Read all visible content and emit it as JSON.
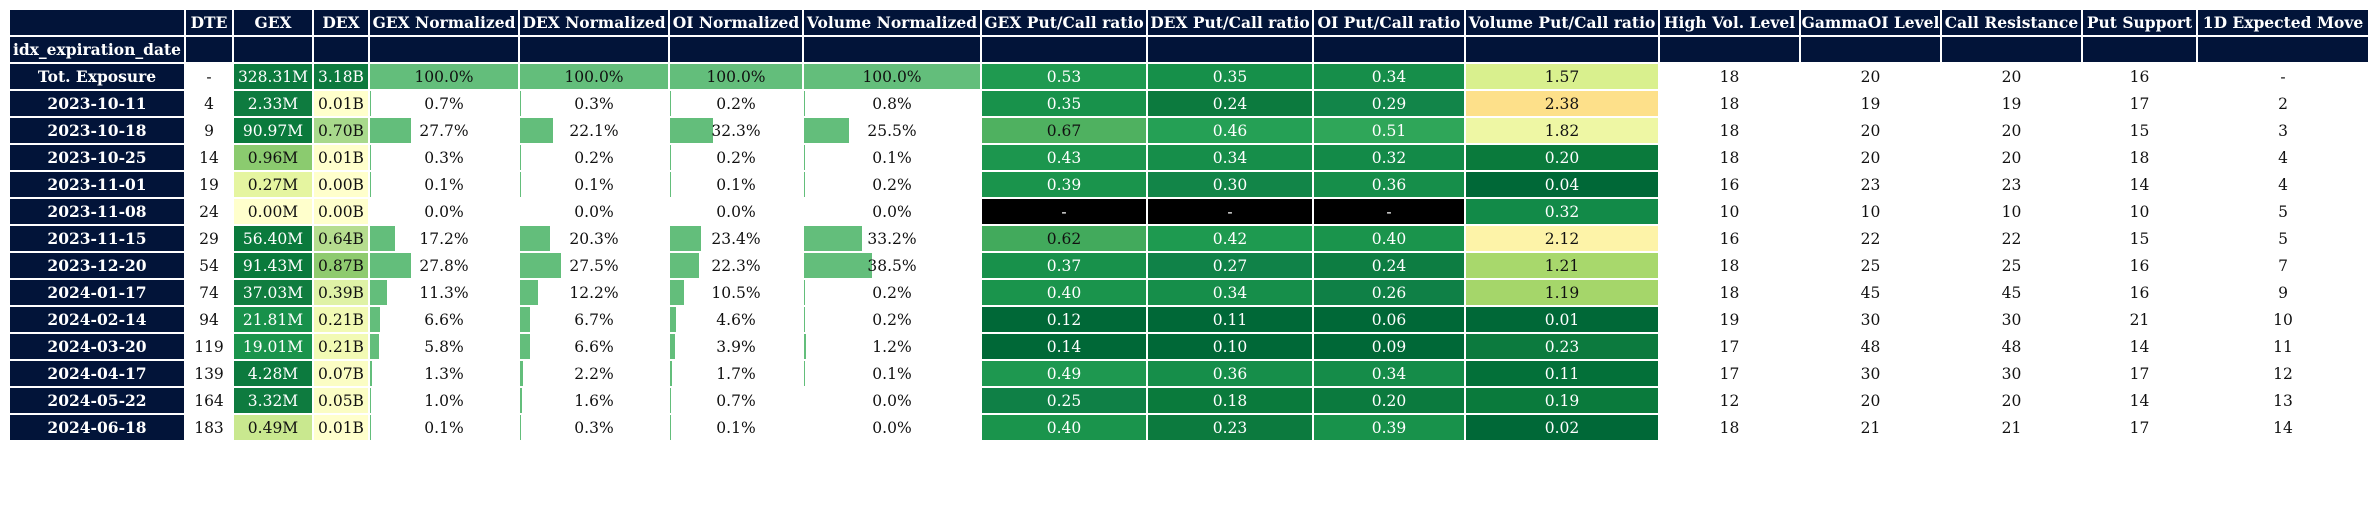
{
  "columns": [
    "DTE",
    "GEX",
    "DEX",
    "GEX Normalized",
    "DEX Normalized",
    "OI Normalized",
    "Volume Normalized",
    "GEX Put/Call ratio",
    "DEX Put/Call ratio",
    "OI Put/Call ratio",
    "Volume Put/Call ratio",
    "High Vol. Level",
    "GammaOI Level",
    "Call Resistance",
    "Put Support",
    "1D Expected Move"
  ],
  "index_name": "idx_expiration_date",
  "rows": [
    {
      "label": "Tot. Exposure",
      "dte": "-",
      "gex": "328.31M",
      "dex": "3.18B",
      "gex_norm": "100.0%",
      "dex_norm": "100.0%",
      "oi_norm": "100.0%",
      "vol_norm": "100.0%",
      "gex_pc": "0.53",
      "dex_pc": "0.35",
      "oi_pc": "0.34",
      "vol_pc": "1.57",
      "hvl": "18",
      "goi": "20",
      "cr": "20",
      "ps": "16",
      "em": "-",
      "gex_color": "#0c7a3e",
      "dex_color": "#0d7a3e",
      "gex_pc_color": "#1f9a50",
      "dex_pc_color": "#16904a",
      "oi_pc_color": "#168e4a",
      "vol_pc_color": "#d9f08e",
      "gex_norm_frac": 1.0,
      "dex_norm_frac": 1.0,
      "oi_norm_frac": 1.0,
      "vol_norm_frac": 1.0
    },
    {
      "label": "2023-10-11",
      "dte": "4",
      "gex": "2.33M",
      "dex": "0.01B",
      "gex_norm": "0.7%",
      "dex_norm": "0.3%",
      "oi_norm": "0.2%",
      "vol_norm": "0.8%",
      "gex_pc": "0.35",
      "dex_pc": "0.24",
      "oi_pc": "0.29",
      "vol_pc": "2.38",
      "hvl": "18",
      "goi": "19",
      "cr": "19",
      "ps": "17",
      "em": "2",
      "gex_color": "#0e7b3f",
      "dex_color": "#ffffcc",
      "gex_pc_color": "#18924b",
      "dex_pc_color": "#0c7a3e",
      "oi_pc_color": "#128549",
      "vol_pc_color": "#fde08a",
      "gex_norm_frac": 0.007,
      "dex_norm_frac": 0.003,
      "oi_norm_frac": 0.002,
      "vol_norm_frac": 0.008
    },
    {
      "label": "2023-10-18",
      "dte": "9",
      "gex": "90.97M",
      "dex": "0.70B",
      "gex_norm": "27.7%",
      "dex_norm": "22.1%",
      "oi_norm": "32.3%",
      "vol_norm": "25.5%",
      "gex_pc": "0.67",
      "dex_pc": "0.46",
      "oi_pc": "0.51",
      "vol_pc": "1.82",
      "hvl": "18",
      "goi": "20",
      "cr": "20",
      "ps": "15",
      "em": "3",
      "gex_color": "#0a7a3c",
      "dex_color": "#a8d98c",
      "gex_pc_color": "#4fb160",
      "dex_pc_color": "#25a055",
      "oi_pc_color": "#2fa659",
      "vol_pc_color": "#eef7a4",
      "gex_norm_frac": 0.277,
      "dex_norm_frac": 0.221,
      "oi_norm_frac": 0.323,
      "vol_norm_frac": 0.255
    },
    {
      "label": "2023-10-25",
      "dte": "14",
      "gex": "0.96M",
      "dex": "0.01B",
      "gex_norm": "0.3%",
      "dex_norm": "0.2%",
      "oi_norm": "0.2%",
      "vol_norm": "0.1%",
      "gex_pc": "0.43",
      "dex_pc": "0.34",
      "oi_pc": "0.32",
      "vol_pc": "0.20",
      "hvl": "18",
      "goi": "20",
      "cr": "20",
      "ps": "18",
      "em": "4",
      "gex_color": "#8bcb6f",
      "dex_color": "#ffffcc",
      "gex_pc_color": "#1c964e",
      "dex_pc_color": "#168e4a",
      "oi_pc_color": "#138a48",
      "vol_pc_color": "#0a7a3c",
      "gex_norm_frac": 0.003,
      "dex_norm_frac": 0.002,
      "oi_norm_frac": 0.002,
      "vol_norm_frac": 0.001
    },
    {
      "label": "2023-11-01",
      "dte": "19",
      "gex": "0.27M",
      "dex": "0.00B",
      "gex_norm": "0.1%",
      "dex_norm": "0.1%",
      "oi_norm": "0.1%",
      "vol_norm": "0.2%",
      "gex_pc": "0.39",
      "dex_pc": "0.30",
      "oi_pc": "0.36",
      "vol_pc": "0.04",
      "hvl": "16",
      "goi": "23",
      "cr": "23",
      "ps": "14",
      "em": "4",
      "gex_color": "#e5f5a0",
      "dex_color": "#ffffcc",
      "gex_pc_color": "#1a944c",
      "dex_pc_color": "#128548",
      "oi_pc_color": "#168e4a",
      "vol_pc_color": "#006837",
      "gex_norm_frac": 0.001,
      "dex_norm_frac": 0.001,
      "oi_norm_frac": 0.001,
      "vol_norm_frac": 0.002
    },
    {
      "label": "2023-11-08",
      "dte": "24",
      "gex": "0.00M",
      "dex": "0.00B",
      "gex_norm": "0.0%",
      "dex_norm": "0.0%",
      "oi_norm": "0.0%",
      "vol_norm": "0.0%",
      "gex_pc": "-",
      "dex_pc": "-",
      "oi_pc": "-",
      "vol_pc": "0.32",
      "hvl": "10",
      "goi": "10",
      "cr": "10",
      "ps": "10",
      "em": "5",
      "gex_color": "#ffffcc",
      "dex_color": "#ffffcc",
      "gex_pc_color": "#000000",
      "dex_pc_color": "#000000",
      "oi_pc_color": "#000000",
      "vol_pc_color": "#128a48",
      "gex_norm_frac": 0.0,
      "dex_norm_frac": 0.0,
      "oi_norm_frac": 0.0,
      "vol_norm_frac": 0.0
    },
    {
      "label": "2023-11-15",
      "dte": "29",
      "gex": "56.40M",
      "dex": "0.64B",
      "gex_norm": "17.2%",
      "dex_norm": "20.3%",
      "oi_norm": "23.4%",
      "vol_norm": "33.2%",
      "gex_pc": "0.62",
      "dex_pc": "0.42",
      "oi_pc": "0.40",
      "vol_pc": "2.12",
      "hvl": "16",
      "goi": "22",
      "cr": "22",
      "ps": "15",
      "em": "5",
      "gex_color": "#0a7a3c",
      "dex_color": "#b5dd8f",
      "gex_pc_color": "#42aa5c",
      "dex_pc_color": "#1e9a50",
      "oi_pc_color": "#1a944c",
      "vol_pc_color": "#fdf3a8",
      "gex_norm_frac": 0.172,
      "dex_norm_frac": 0.203,
      "oi_norm_frac": 0.234,
      "vol_norm_frac": 0.332
    },
    {
      "label": "2023-12-20",
      "dte": "54",
      "gex": "91.43M",
      "dex": "0.87B",
      "gex_norm": "27.8%",
      "dex_norm": "27.5%",
      "oi_norm": "22.3%",
      "vol_norm": "38.5%",
      "gex_pc": "0.37",
      "dex_pc": "0.27",
      "oi_pc": "0.24",
      "vol_pc": "1.21",
      "hvl": "18",
      "goi": "25",
      "cr": "25",
      "ps": "16",
      "em": "7",
      "gex_color": "#0a7a3c",
      "dex_color": "#8fcb6f",
      "gex_pc_color": "#18914b",
      "dex_pc_color": "#108248",
      "oi_pc_color": "#0d7d42",
      "vol_pc_color": "#a8d86c",
      "gex_norm_frac": 0.278,
      "dex_norm_frac": 0.275,
      "oi_norm_frac": 0.223,
      "vol_norm_frac": 0.385
    },
    {
      "label": "2024-01-17",
      "dte": "74",
      "gex": "37.03M",
      "dex": "0.39B",
      "gex_norm": "11.3%",
      "dex_norm": "12.2%",
      "oi_norm": "10.5%",
      "vol_norm": "0.2%",
      "gex_pc": "0.40",
      "dex_pc": "0.34",
      "oi_pc": "0.26",
      "vol_pc": "1.19",
      "hvl": "18",
      "goi": "45",
      "cr": "45",
      "ps": "16",
      "em": "9",
      "gex_color": "#107d3f",
      "dex_color": "#dff2a6",
      "gex_pc_color": "#1a944c",
      "dex_pc_color": "#168e4a",
      "oi_pc_color": "#0f8046",
      "vol_pc_color": "#a5d66a",
      "gex_norm_frac": 0.113,
      "dex_norm_frac": 0.122,
      "oi_norm_frac": 0.105,
      "vol_norm_frac": 0.002
    },
    {
      "label": "2024-02-14",
      "dte": "94",
      "gex": "21.81M",
      "dex": "0.21B",
      "gex_norm": "6.6%",
      "dex_norm": "6.7%",
      "oi_norm": "4.6%",
      "vol_norm": "0.2%",
      "gex_pc": "0.12",
      "dex_pc": "0.11",
      "oi_pc": "0.06",
      "vol_pc": "0.01",
      "hvl": "19",
      "goi": "30",
      "cr": "30",
      "ps": "21",
      "em": "10",
      "gex_color": "#18914b",
      "dex_color": "#f2fab4",
      "gex_pc_color": "#006837",
      "dex_pc_color": "#006837",
      "oi_pc_color": "#006837",
      "vol_pc_color": "#006837",
      "gex_norm_frac": 0.066,
      "dex_norm_frac": 0.067,
      "oi_norm_frac": 0.046,
      "vol_norm_frac": 0.002
    },
    {
      "label": "2024-03-20",
      "dte": "119",
      "gex": "19.01M",
      "dex": "0.21B",
      "gex_norm": "5.8%",
      "dex_norm": "6.6%",
      "oi_norm": "3.9%",
      "vol_norm": "1.2%",
      "gex_pc": "0.14",
      "dex_pc": "0.10",
      "oi_pc": "0.09",
      "vol_pc": "0.23",
      "hvl": "17",
      "goi": "48",
      "cr": "48",
      "ps": "14",
      "em": "11",
      "gex_color": "#1a944c",
      "dex_color": "#f2fab4",
      "gex_pc_color": "#006837",
      "dex_pc_color": "#006837",
      "oi_pc_color": "#006837",
      "vol_pc_color": "#0c7a3e",
      "gex_norm_frac": 0.058,
      "dex_norm_frac": 0.066,
      "oi_norm_frac": 0.039,
      "vol_norm_frac": 0.012
    },
    {
      "label": "2024-04-17",
      "dte": "139",
      "gex": "4.28M",
      "dex": "0.07B",
      "gex_norm": "1.3%",
      "dex_norm": "2.2%",
      "oi_norm": "1.7%",
      "vol_norm": "0.1%",
      "gex_pc": "0.49",
      "dex_pc": "0.36",
      "oi_pc": "0.34",
      "vol_pc": "0.11",
      "hvl": "17",
      "goi": "30",
      "cr": "30",
      "ps": "17",
      "em": "12",
      "gex_color": "#0c7a3e",
      "dex_color": "#fbfdc4",
      "gex_pc_color": "#1e9850",
      "dex_pc_color": "#168e4a",
      "oi_pc_color": "#158c49",
      "vol_pc_color": "#037039",
      "gex_norm_frac": 0.013,
      "dex_norm_frac": 0.022,
      "oi_norm_frac": 0.017,
      "vol_norm_frac": 0.001
    },
    {
      "label": "2024-05-22",
      "dte": "164",
      "gex": "3.32M",
      "dex": "0.05B",
      "gex_norm": "1.0%",
      "dex_norm": "1.6%",
      "oi_norm": "0.7%",
      "vol_norm": "0.0%",
      "gex_pc": "0.25",
      "dex_pc": "0.18",
      "oi_pc": "0.20",
      "vol_pc": "0.19",
      "hvl": "12",
      "goi": "20",
      "cr": "20",
      "ps": "14",
      "em": "13",
      "gex_color": "#0e7b3f",
      "dex_color": "#fbfdc4",
      "gex_pc_color": "#0f8046",
      "dex_pc_color": "#0a7a3c",
      "oi_pc_color": "#0b7a3e",
      "vol_pc_color": "#0a7a3c",
      "gex_norm_frac": 0.01,
      "dex_norm_frac": 0.016,
      "oi_norm_frac": 0.007,
      "vol_norm_frac": 0.0
    },
    {
      "label": "2024-06-18",
      "dte": "183",
      "gex": "0.49M",
      "dex": "0.01B",
      "gex_norm": "0.1%",
      "dex_norm": "0.3%",
      "oi_norm": "0.1%",
      "vol_norm": "0.0%",
      "gex_pc": "0.40",
      "dex_pc": "0.23",
      "oi_pc": "0.39",
      "vol_pc": "0.02",
      "hvl": "18",
      "goi": "21",
      "cr": "21",
      "ps": "17",
      "em": "14",
      "gex_color": "#c9e88f",
      "dex_color": "#ffffcc",
      "gex_pc_color": "#1a944c",
      "dex_pc_color": "#0c7a3e",
      "oi_pc_color": "#18924b",
      "vol_pc_color": "#006837",
      "gex_norm_frac": 0.001,
      "dex_norm_frac": 0.003,
      "oi_norm_frac": 0.001,
      "vol_norm_frac": 0.0
    }
  ],
  "colors": {
    "header_bg": "#021439",
    "header_text": "#ffffff",
    "bar": "#63be7b",
    "text_dark": "#111111",
    "text_light": "#ffffff"
  }
}
